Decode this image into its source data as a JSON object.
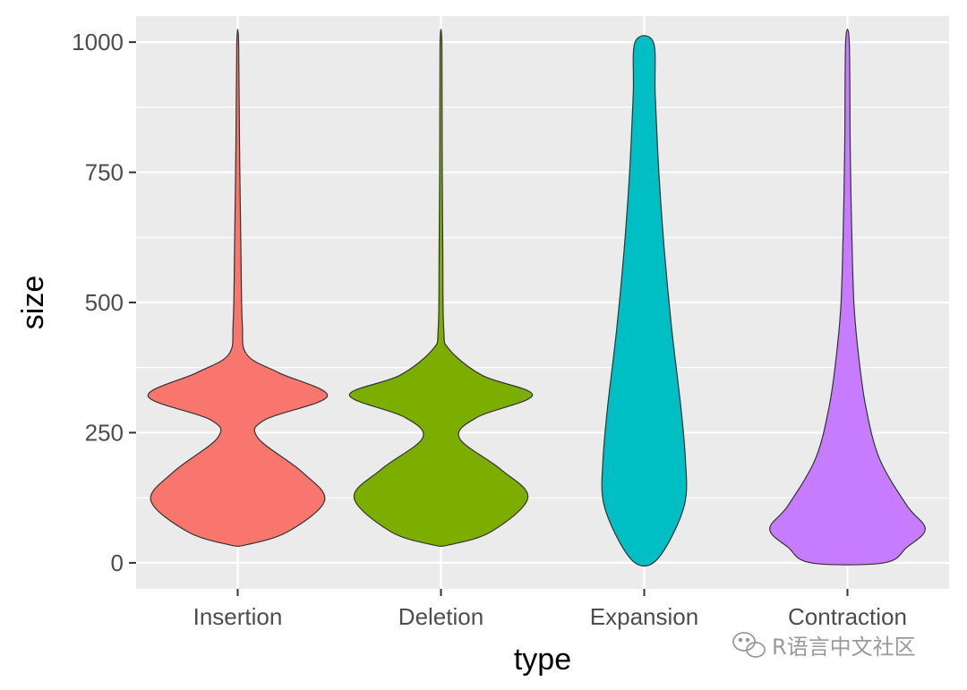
{
  "chart_data": {
    "type": "violin",
    "title": "",
    "xlabel": "type",
    "ylabel": "size",
    "ylim": [
      -50,
      1050
    ],
    "y_ticks": [
      0,
      250,
      500,
      750,
      1000
    ],
    "y_tick_labels": [
      "0",
      "250",
      "500",
      "750",
      "1000"
    ],
    "categories": [
      "Insertion",
      "Deletion",
      "Expansion",
      "Contraction"
    ],
    "colors": [
      "#F8766D",
      "#7CAE00",
      "#00BFC4",
      "#C77CFF"
    ],
    "series": [
      {
        "name": "Insertion",
        "range": [
          35,
          1000
        ],
        "width_profile": [
          [
            35,
            0.1
          ],
          [
            60,
            0.55
          ],
          [
            120,
            0.95
          ],
          [
            175,
            0.7
          ],
          [
            240,
            0.22
          ],
          [
            275,
            0.3
          ],
          [
            320,
            0.98
          ],
          [
            365,
            0.45
          ],
          [
            400,
            0.1
          ],
          [
            460,
            0.05
          ],
          [
            600,
            0.035
          ],
          [
            800,
            0.02
          ],
          [
            1000,
            0.01
          ]
        ]
      },
      {
        "name": "Deletion",
        "range": [
          35,
          1000
        ],
        "width_profile": [
          [
            35,
            0.1
          ],
          [
            60,
            0.55
          ],
          [
            125,
            0.95
          ],
          [
            180,
            0.65
          ],
          [
            240,
            0.2
          ],
          [
            280,
            0.4
          ],
          [
            322,
            1.0
          ],
          [
            360,
            0.45
          ],
          [
            410,
            0.09
          ],
          [
            450,
            0.03
          ],
          [
            600,
            0.02
          ],
          [
            800,
            0.013
          ],
          [
            1000,
            0.01
          ]
        ]
      },
      {
        "name": "Expansion",
        "range": [
          0,
          1000
        ],
        "width_profile": [
          [
            0,
            0.1
          ],
          [
            50,
            0.3
          ],
          [
            120,
            0.45
          ],
          [
            200,
            0.45
          ],
          [
            300,
            0.4
          ],
          [
            450,
            0.3
          ],
          [
            600,
            0.22
          ],
          [
            750,
            0.16
          ],
          [
            900,
            0.12
          ],
          [
            1000,
            0.1
          ]
        ]
      },
      {
        "name": "Contraction",
        "range": [
          0,
          1000
        ],
        "width_profile": [
          [
            0,
            0.4
          ],
          [
            30,
            0.65
          ],
          [
            65,
            0.85
          ],
          [
            110,
            0.65
          ],
          [
            200,
            0.35
          ],
          [
            300,
            0.2
          ],
          [
            400,
            0.12
          ],
          [
            500,
            0.07
          ],
          [
            650,
            0.045
          ],
          [
            800,
            0.03
          ],
          [
            1000,
            0.02
          ]
        ]
      }
    ]
  },
  "watermark": {
    "text": "R语言中文社区",
    "icon": "wechat-icon"
  }
}
